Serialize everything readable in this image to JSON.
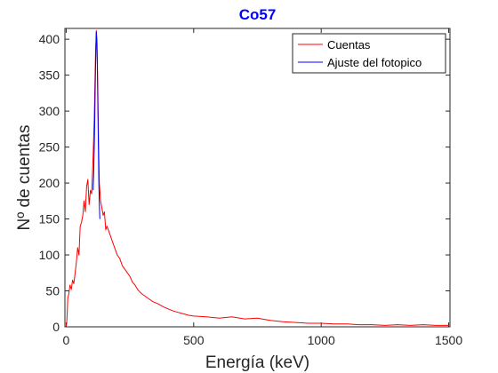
{
  "chart_data": {
    "type": "line",
    "title": "Co57",
    "title_color": "#0000ff",
    "xlabel": "Energía (keV)",
    "ylabel": "Nº de cuentas",
    "xlim": [
      -5,
      1505
    ],
    "ylim": [
      0,
      415
    ],
    "xticks": [
      0,
      500,
      1000,
      1500
    ],
    "yticks": [
      0,
      50,
      100,
      150,
      200,
      250,
      300,
      350,
      400
    ],
    "grid": false,
    "legend_position": "top-right",
    "series": [
      {
        "name": "Cuentas",
        "color": "#ff0000",
        "x": [
          0,
          2,
          4,
          6,
          10,
          15,
          20,
          25,
          30,
          35,
          40,
          45,
          50,
          55,
          60,
          65,
          70,
          75,
          80,
          85,
          90,
          95,
          100,
          105,
          110,
          115,
          118,
          121,
          124,
          127,
          130,
          135,
          140,
          145,
          150,
          155,
          160,
          170,
          180,
          190,
          200,
          210,
          220,
          230,
          240,
          250,
          260,
          270,
          280,
          290,
          300,
          320,
          340,
          360,
          380,
          400,
          420,
          440,
          460,
          480,
          500,
          550,
          600,
          650,
          700,
          750,
          800,
          850,
          900,
          950,
          1000,
          1050,
          1100,
          1150,
          1200,
          1250,
          1300,
          1350,
          1400,
          1450,
          1500
        ],
        "y": [
          0,
          5,
          20,
          40,
          45,
          58,
          52,
          65,
          60,
          75,
          90,
          110,
          100,
          140,
          145,
          155,
          175,
          160,
          195,
          205,
          170,
          190,
          185,
          230,
          290,
          380,
          412,
          395,
          330,
          250,
          200,
          175,
          165,
          155,
          160,
          135,
          140,
          130,
          120,
          110,
          100,
          95,
          85,
          80,
          75,
          70,
          62,
          58,
          52,
          48,
          45,
          40,
          35,
          32,
          28,
          25,
          22,
          20,
          18,
          16,
          15,
          14,
          12,
          14,
          11,
          12,
          9,
          7,
          6,
          5,
          5,
          4,
          4,
          3,
          3,
          2,
          3,
          2,
          3,
          2,
          2
        ]
      },
      {
        "name": "Ajuste del fotopico",
        "color": "#0000ff",
        "x": [
          106,
          108,
          110,
          112,
          114,
          116,
          118,
          120,
          122,
          124,
          126,
          128,
          130,
          132
        ],
        "y": [
          190,
          215,
          250,
          290,
          335,
          380,
          410,
          400,
          365,
          310,
          255,
          205,
          170,
          150
        ]
      }
    ]
  }
}
